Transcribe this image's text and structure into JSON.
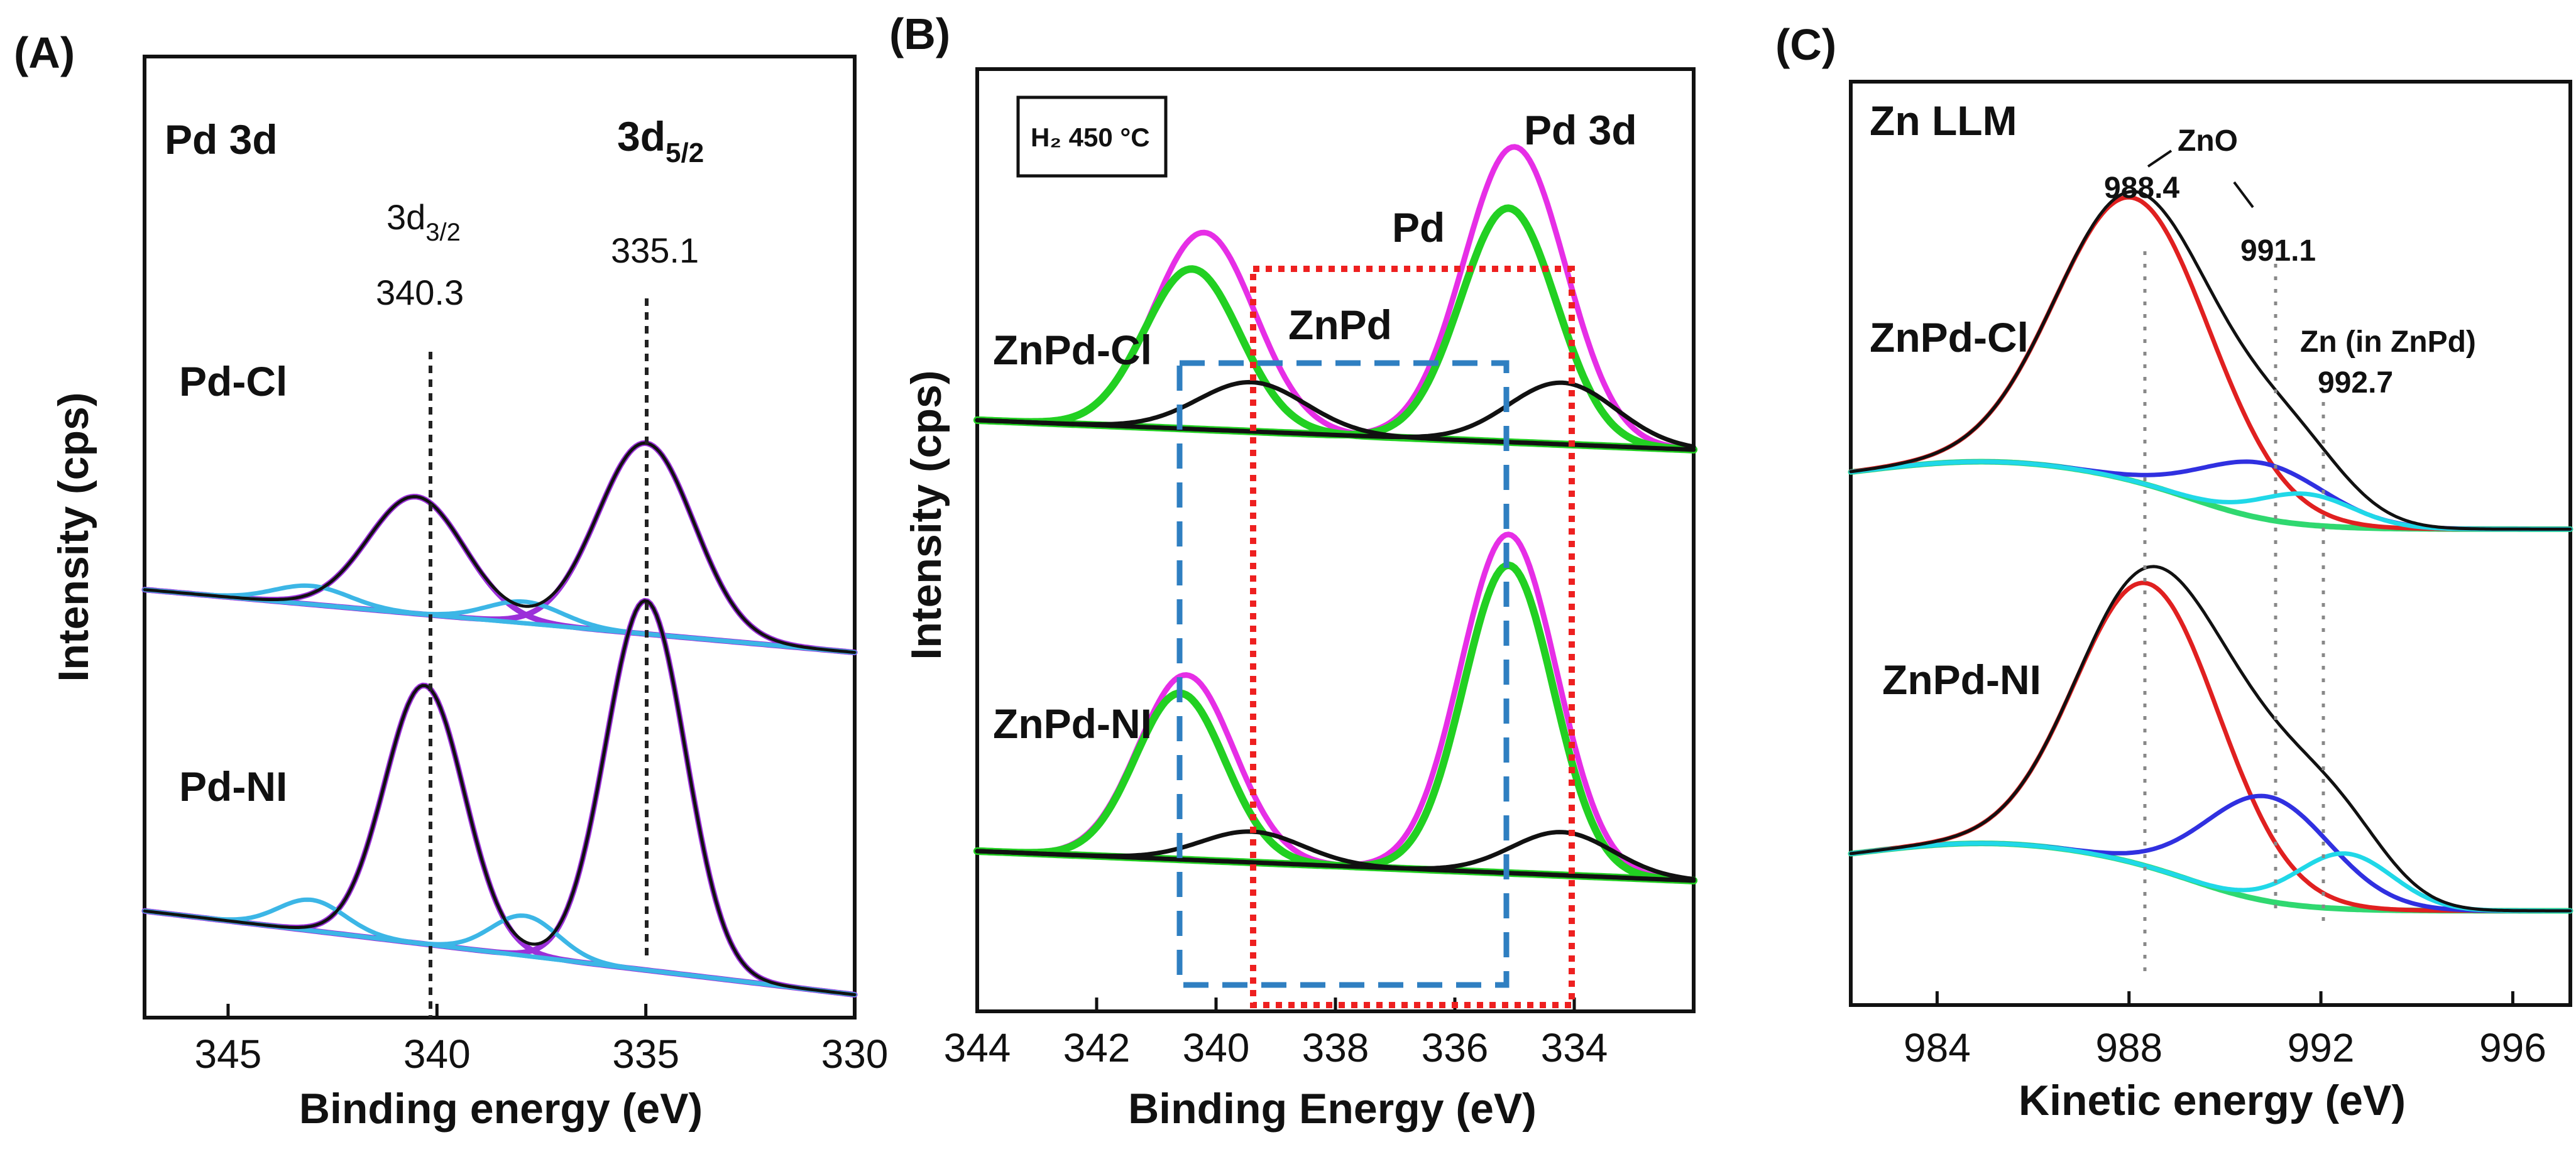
{
  "chart_data": [
    {
      "id": "A",
      "type": "line",
      "panel_label": "(A)",
      "title": "Pd 3d",
      "xlabel": "Binding energy (eV)",
      "ylabel": "Intensity (cps)",
      "xlim": [
        347,
        330
      ],
      "xticks": [
        345,
        340,
        335,
        330
      ],
      "peak_labels": [
        {
          "name": "3d",
          "sub": "3/2",
          "energy": 340.3,
          "value_text": "340.3"
        },
        {
          "name": "3d",
          "sub": "5/2",
          "energy": 335.1,
          "value_text": "335.1"
        }
      ],
      "samples": [
        {
          "name": "Pd-Cl",
          "offset": 0.55,
          "peaks": [
            {
              "series": "fit envelope",
              "color": "#9b30d9",
              "center": 340.5,
              "height": 0.19,
              "width": 1.15
            },
            {
              "series": "fit envelope",
              "color": "#9b30d9",
              "center": 335.0,
              "height": 0.31,
              "width": 1.15
            },
            {
              "series": "satellite",
              "color": "#3cb6e6",
              "center": 343.0,
              "height": 0.03,
              "width": 0.9
            },
            {
              "series": "satellite",
              "color": "#3cb6e6",
              "center": 337.9,
              "height": 0.035,
              "width": 0.9
            }
          ]
        },
        {
          "name": "Pd-NI",
          "offset": 0.0,
          "peaks": [
            {
              "series": "fit envelope",
              "color": "#9b30d9",
              "center": 340.3,
              "height": 0.42,
              "width": 0.95
            },
            {
              "series": "fit envelope",
              "color": "#9b30d9",
              "center": 335.0,
              "height": 0.6,
              "width": 0.95
            },
            {
              "series": "satellite",
              "color": "#3cb6e6",
              "center": 343.0,
              "height": 0.05,
              "width": 0.8
            },
            {
              "series": "satellite",
              "color": "#3cb6e6",
              "center": 337.9,
              "height": 0.065,
              "width": 0.8
            }
          ]
        }
      ]
    },
    {
      "id": "B",
      "type": "line",
      "panel_label": "(B)",
      "title": "Pd 3d",
      "condition": "H₂ 450 °C",
      "xlabel": "Binding Energy (eV)",
      "ylabel": "Intensity (cps)",
      "xlim": [
        344,
        332
      ],
      "xticks": [
        344,
        342,
        340,
        338,
        336,
        334
      ],
      "regions": [
        {
          "name": "ZnPd",
          "style": "dashed-blue",
          "from": 340.6,
          "to": 335.1
        },
        {
          "name": "Pd",
          "style": "dotted-red",
          "from": 339.3,
          "to": 334.2
        }
      ],
      "samples": [
        {
          "name": "ZnPd-Cl",
          "offset": 0.7,
          "peaks": [
            {
              "series": "envelope",
              "color": "#e62ee6",
              "center": 340.2,
              "height": 0.32,
              "width": 0.85
            },
            {
              "series": "envelope",
              "color": "#e62ee6",
              "center": 335.0,
              "height": 0.48,
              "width": 0.85
            },
            {
              "series": "ZnPd component",
              "color": "#22d022",
              "center": 340.4,
              "height": 0.26,
              "width": 0.8
            },
            {
              "series": "ZnPd component",
              "color": "#22d022",
              "center": 335.1,
              "height": 0.38,
              "width": 0.8
            },
            {
              "series": "Pd component",
              "color": "#111111",
              "center": 339.4,
              "height": 0.08,
              "width": 0.9
            },
            {
              "series": "Pd component",
              "color": "#111111",
              "center": 334.2,
              "height": 0.1,
              "width": 0.9
            }
          ]
        },
        {
          "name": "ZnPd-NI",
          "offset": 0.0,
          "peaks": [
            {
              "series": "envelope",
              "color": "#e62ee6",
              "center": 340.5,
              "height": 0.3,
              "width": 0.8
            },
            {
              "series": "envelope",
              "color": "#e62ee6",
              "center": 335.1,
              "height": 0.55,
              "width": 0.8
            },
            {
              "series": "ZnPd component",
              "color": "#22d022",
              "center": 340.6,
              "height": 0.27,
              "width": 0.75
            },
            {
              "series": "ZnPd component",
              "color": "#22d022",
              "center": 335.1,
              "height": 0.5,
              "width": 0.75
            },
            {
              "series": "Pd component",
              "color": "#111111",
              "center": 339.4,
              "height": 0.05,
              "width": 0.85
            },
            {
              "series": "Pd component",
              "color": "#111111",
              "center": 334.2,
              "height": 0.07,
              "width": 0.85
            }
          ]
        }
      ]
    },
    {
      "id": "C",
      "type": "line",
      "panel_label": "(C)",
      "title": "Zn LLM",
      "xlabel": "Kinetic energy (eV)",
      "ylabel": "",
      "xlim": [
        982.2,
        997.2
      ],
      "xticks": [
        984,
        988,
        992,
        996
      ],
      "peak_labels": [
        {
          "name": "ZnO",
          "energy": 988.4,
          "value_text": "988.4"
        },
        {
          "name": "ZnO",
          "energy": 991.1,
          "value_text": "991.1"
        },
        {
          "name": "Zn (in ZnPd)",
          "energy": 992.7,
          "value_text": "992.7"
        }
      ],
      "samples": [
        {
          "name": "ZnPd-Cl",
          "offset": 0.62,
          "peaks": [
            {
              "series": "ZnO main",
              "color": "#e02020",
              "center": 988.1,
              "height": 0.46,
              "width": 1.6
            },
            {
              "series": "ZnO second",
              "color": "#3030e0",
              "center": 990.8,
              "height": 0.09,
              "width": 1.3
            },
            {
              "series": "Zn (in ZnPd)",
              "color": "#20d8e8",
              "center": 991.7,
              "height": 0.05,
              "width": 1.0
            }
          ]
        },
        {
          "name": "ZnPd-NI",
          "offset": 0.0,
          "peaks": [
            {
              "series": "ZnO main",
              "color": "#e02020",
              "center": 988.4,
              "height": 0.46,
              "width": 1.5
            },
            {
              "series": "ZnO second",
              "color": "#3030e0",
              "center": 990.9,
              "height": 0.17,
              "width": 1.3
            },
            {
              "series": "Zn (in ZnPd)",
              "color": "#20d8e8",
              "center": 992.5,
              "height": 0.09,
              "width": 1.0
            }
          ]
        }
      ]
    }
  ]
}
